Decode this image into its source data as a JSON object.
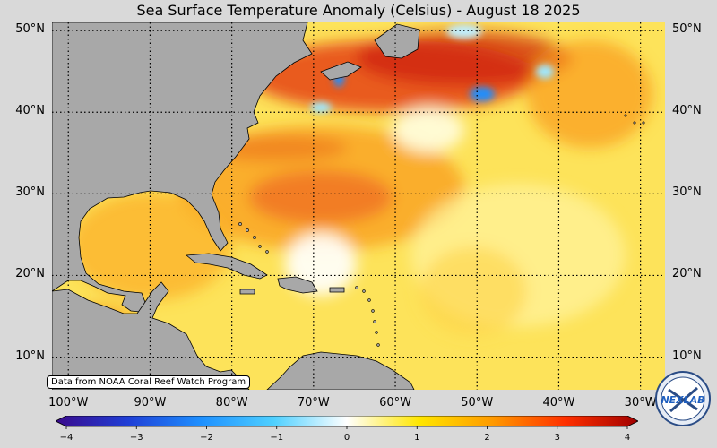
{
  "title": "Sea Surface Temperature Anomaly (Celsius) - August 18 2025",
  "credit": "Data from NOAA Coral Reef Watch Program",
  "logo_text": "NEXLAB",
  "map": {
    "lon_min": -102,
    "lon_max": -27,
    "lat_min": 6,
    "lat_max": 51,
    "lat_lines": [
      10,
      20,
      30,
      40,
      50
    ],
    "lon_lines": [
      -100,
      -90,
      -80,
      -70,
      -60,
      -50,
      -40,
      -30
    ],
    "lat_labels": [
      "10°N",
      "20°N",
      "30°N",
      "40°N",
      "50°N"
    ],
    "lon_labels": [
      "100°W",
      "90°W",
      "80°W",
      "70°W",
      "60°W",
      "50°W",
      "40°W",
      "30°W"
    ],
    "land_color": "#a8a8a8",
    "grid": "dotted"
  },
  "colorbar": {
    "min": -4,
    "max": 4,
    "tick_values": [
      -4,
      -3,
      -2,
      -1,
      0,
      1,
      2,
      3,
      4
    ],
    "tick_labels": [
      "−4",
      "−3",
      "−2",
      "−1",
      "0",
      "1",
      "2",
      "3",
      "4"
    ],
    "colors": [
      "#3a0a8c",
      "#1f3fd6",
      "#1e90ff",
      "#4fd0ff",
      "#ffffff",
      "#ffe600",
      "#ff9a00",
      "#ff3000",
      "#a00000"
    ]
  }
}
